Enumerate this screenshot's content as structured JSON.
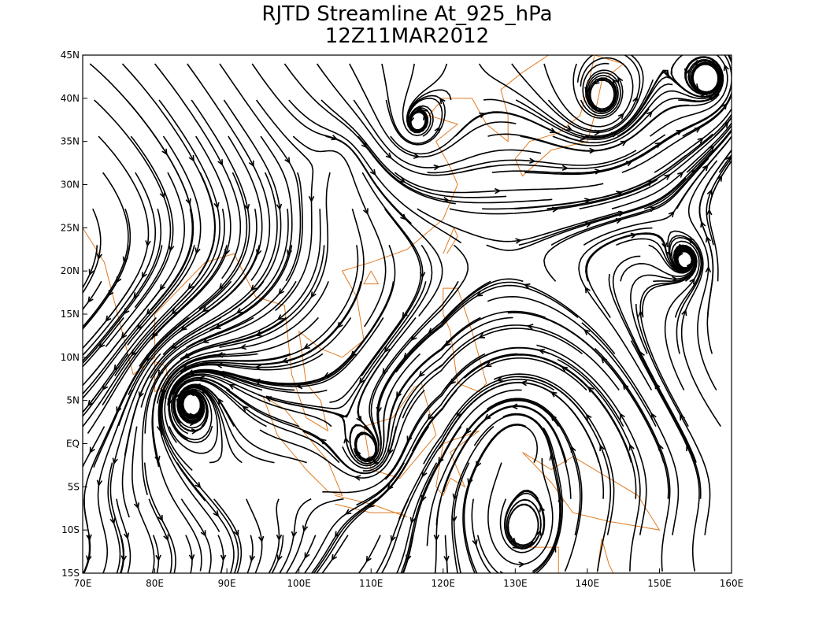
{
  "title": "RJTD Streamline At_925_hPa",
  "subtitle": "12Z11MAR2012",
  "x_ticks": [
    "70E",
    "80E",
    "90E",
    "100E",
    "110E",
    "120E",
    "130E",
    "140E",
    "150E",
    "160E"
  ],
  "y_ticks": [
    "45N",
    "40N",
    "35N",
    "30N",
    "25N",
    "20N",
    "15N",
    "10N",
    "5N",
    "EQ",
    "5S",
    "10S",
    "15S"
  ]
}
